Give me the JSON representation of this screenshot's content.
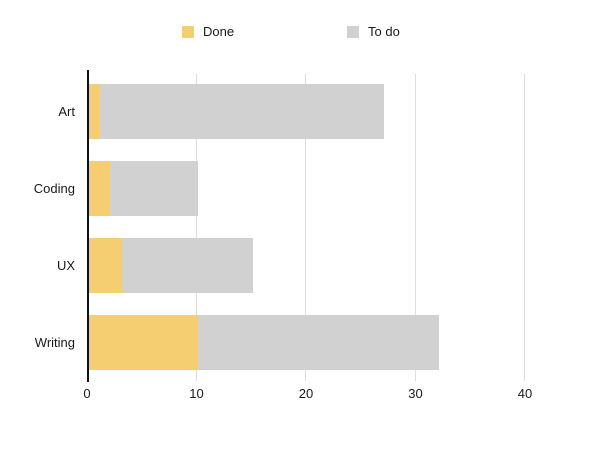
{
  "chart_data": {
    "type": "bar",
    "orientation": "horizontal",
    "stacked": true,
    "title": "",
    "categories": [
      "Art",
      "Coding",
      "UX",
      "Writing"
    ],
    "series": [
      {
        "name": "Done",
        "color": "#F5CE72",
        "values": [
          1,
          2,
          3,
          10
        ]
      },
      {
        "name": "To do",
        "color": "#D1D1D1",
        "values": [
          26,
          8,
          12,
          22
        ]
      }
    ],
    "stack_totals": [
      27,
      10,
      15,
      32
    ],
    "x_ticks": [
      0,
      10,
      20,
      30,
      40
    ],
    "xlim": [
      0,
      43.2
    ],
    "legend": {
      "position": "top",
      "items": [
        "Done",
        "To do"
      ]
    },
    "grid": "vertical",
    "colors": {
      "grid_line": "#DDDDDD",
      "axis_line": "#111111",
      "text": "#1A1A1A",
      "background": "#FFFFFF"
    }
  }
}
